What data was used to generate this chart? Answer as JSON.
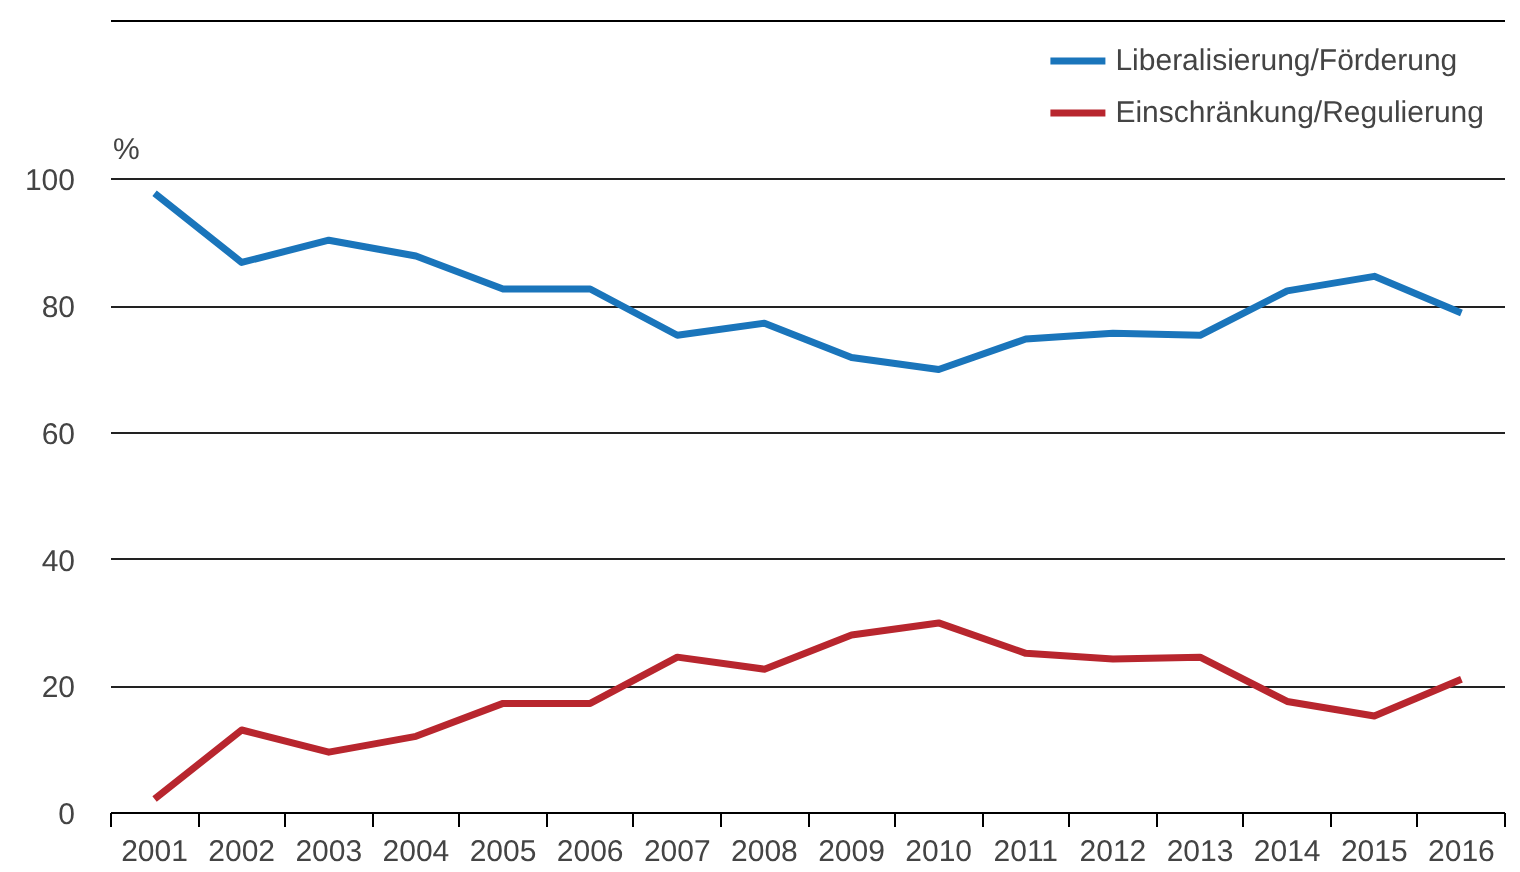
{
  "chart_data": {
    "type": "line",
    "ylabel": "%",
    "categories": [
      "2001",
      "2002",
      "2003",
      "2004",
      "2005",
      "2006",
      "2007",
      "2008",
      "2009",
      "2010",
      "2011",
      "2012",
      "2013",
      "2014",
      "2015",
      "2016"
    ],
    "series": [
      {
        "name": "Liberalisierung/Förderung",
        "color": "#1a75bb",
        "values": [
          97.8,
          86.9,
          90.4,
          87.9,
          82.7,
          82.7,
          75.4,
          77.3,
          71.9,
          70.0,
          74.8,
          75.7,
          75.4,
          82.4,
          84.7,
          78.9
        ]
      },
      {
        "name": "Einschränkung/Regulierung",
        "color": "#b8262e",
        "values": [
          2.2,
          13.1,
          9.6,
          12.1,
          17.3,
          17.3,
          24.6,
          22.7,
          28.1,
          30.0,
          25.2,
          24.3,
          24.6,
          17.6,
          15.3,
          21.1
        ]
      }
    ],
    "ylim": [
      0,
      125
    ],
    "yticks": [
      0,
      20,
      40,
      60,
      80,
      100
    ],
    "grid": "y",
    "legend": "top right",
    "line_style": "solid",
    "marker": "none"
  }
}
